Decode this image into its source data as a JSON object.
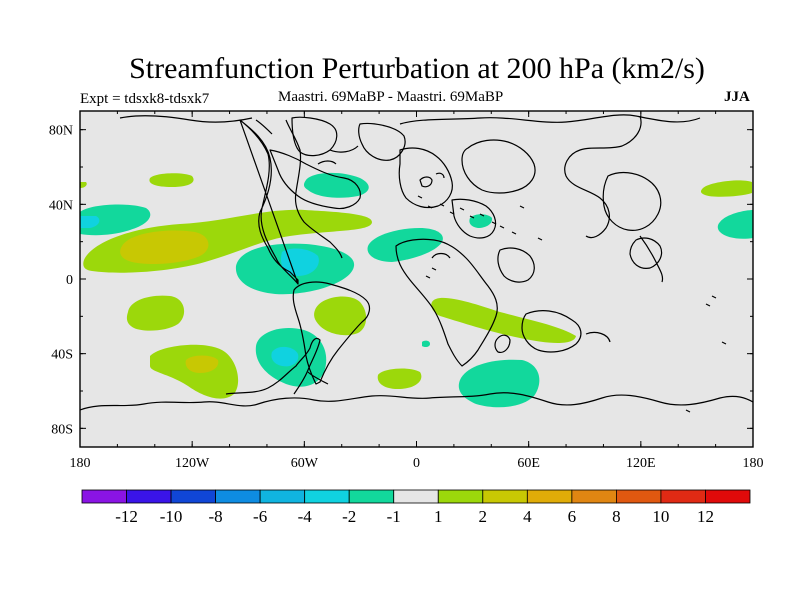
{
  "title": "Streamfunction Perturbation at 200 hPa (km2/s)",
  "left_subtitle": "Expt = tdsxk8-tdsxk7",
  "center_subtitle": "Maastri.  69MaBP - Maastri.  69MaBP",
  "right_subtitle": "JJA",
  "map": {
    "projection": "cylindrical-equidistant",
    "lon_range": [
      -180,
      180
    ],
    "lat_range": [
      -90,
      90
    ],
    "background_color": "#e6e6e6",
    "x_ticks": [
      {
        "lon": -180,
        "label": "180"
      },
      {
        "lon": -120,
        "label": "120W"
      },
      {
        "lon": -60,
        "label": "60W"
      },
      {
        "lon": 0,
        "label": "0"
      },
      {
        "lon": 60,
        "label": "60E"
      },
      {
        "lon": 120,
        "label": "120E"
      },
      {
        "lon": 180,
        "label": "180"
      }
    ],
    "y_ticks": [
      {
        "lat": 80,
        "label": "80N"
      },
      {
        "lat": 40,
        "label": "40N"
      },
      {
        "lat": 0,
        "label": "0"
      },
      {
        "lat": -40,
        "label": "40S"
      },
      {
        "lat": -80,
        "label": "80S"
      }
    ],
    "anomalies": [
      {
        "id": "pos-north-pacific-band",
        "value": 2,
        "color": "#9cd80b"
      },
      {
        "id": "pos-north-pacific-core",
        "value": 4,
        "color": "#c8c803"
      },
      {
        "id": "pos-atlantic-south",
        "value": 2,
        "color": "#9cd80b"
      },
      {
        "id": "pos-south-pacific",
        "value": 2,
        "color": "#9cd80b"
      },
      {
        "id": "pos-south-pacific-core",
        "value": 4,
        "color": "#c8c803"
      },
      {
        "id": "pos-indian-ocean",
        "value": 2,
        "color": "#9cd80b"
      },
      {
        "id": "pos-east-pacific-south",
        "value": 2,
        "color": "#9cd80b"
      },
      {
        "id": "pos-north-pacific-small",
        "value": 2,
        "color": "#9cd80b"
      },
      {
        "id": "pos-south-atlantic-small",
        "value": 2,
        "color": "#9cd80b"
      },
      {
        "id": "pos-west-pacific-north",
        "value": 2,
        "color": "#9cd80b"
      },
      {
        "id": "neg-central-america",
        "value": -2,
        "color": "#12d89c"
      },
      {
        "id": "neg-central-america-core",
        "value": -4,
        "color": "#10d2e0"
      },
      {
        "id": "neg-north-atlantic",
        "value": -2,
        "color": "#12d89c"
      },
      {
        "id": "neg-tethys-atlantic",
        "value": -2,
        "color": "#12d89c"
      },
      {
        "id": "neg-southern-ocean-indian",
        "value": -2,
        "color": "#12d89c"
      },
      {
        "id": "neg-south-america-south",
        "value": -2,
        "color": "#12d89c"
      },
      {
        "id": "neg-south-america-core",
        "value": -4,
        "color": "#10d2e0"
      },
      {
        "id": "neg-east-pacific-north",
        "value": -2,
        "color": "#12d89c"
      },
      {
        "id": "neg-east-pacific-core",
        "value": -4,
        "color": "#10d2e0"
      },
      {
        "id": "neg-west-pacific-north",
        "value": -2,
        "color": "#12d89c"
      },
      {
        "id": "neg-south-atlantic-blob",
        "value": -2,
        "color": "#12d89c"
      },
      {
        "id": "neg-asia-small",
        "value": -2,
        "color": "#12d89c"
      },
      {
        "id": "neg-africa-small",
        "value": -2,
        "color": "#12d89c"
      },
      {
        "id": "neg-south-pacific-small",
        "value": -2,
        "color": "#12d89c"
      }
    ]
  },
  "colorbar": {
    "colors": [
      "#8a14e4",
      "#3a14e8",
      "#1046d6",
      "#0e8ce2",
      "#10b4e0",
      "#10d2e0",
      "#12d89c",
      "#e6e6e6",
      "#9cd80b",
      "#c8c803",
      "#e0ac08",
      "#e08612",
      "#e05810",
      "#e02a14",
      "#e00a0a"
    ],
    "labels": [
      "-12",
      "-10",
      "-8",
      "-6",
      "-4",
      "-2",
      "-1",
      "1",
      "2",
      "4",
      "6",
      "8",
      "10",
      "12"
    ]
  }
}
